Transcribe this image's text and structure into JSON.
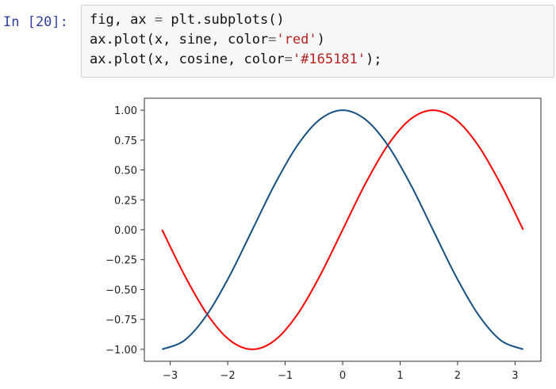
{
  "cell": {
    "prompt": "In [20]:",
    "code_lines": [
      [
        {
          "t": "fig, ax "
        },
        {
          "t": "=",
          "c": "op"
        },
        {
          "t": " plt.subplots()"
        }
      ],
      [
        {
          "t": "ax.plot(x, sine, color"
        },
        {
          "t": "=",
          "c": "op"
        },
        {
          "t": "'red'",
          "c": "str"
        },
        {
          "t": ")"
        }
      ],
      [
        {
          "t": "ax.plot(x, cosine, color"
        },
        {
          "t": "=",
          "c": "op"
        },
        {
          "t": "'#165181'",
          "c": "str"
        },
        {
          "t": ");"
        }
      ]
    ]
  },
  "chart_data": {
    "type": "line",
    "title": "",
    "xlabel": "",
    "ylabel": "",
    "xlim": [
      -3.45,
      3.45
    ],
    "ylim": [
      -1.1,
      1.1
    ],
    "xticks": [
      -3,
      -2,
      -1,
      0,
      1,
      2,
      3
    ],
    "xtick_labels": [
      "−3",
      "−2",
      "−1",
      "0",
      "1",
      "2",
      "3"
    ],
    "yticks": [
      1.0,
      0.75,
      0.5,
      0.25,
      0.0,
      -0.25,
      -0.5,
      -0.75,
      -1.0
    ],
    "ytick_labels": [
      "1.00",
      "0.75",
      "0.50",
      "0.25",
      "0.00",
      "−0.25",
      "−0.50",
      "−0.75",
      "−1.00"
    ],
    "grid": false,
    "series": [
      {
        "color": "#ff0000",
        "x": [
          -3.14159,
          -2.74889,
          -2.35619,
          -1.9635,
          -1.5708,
          -1.1781,
          -0.7854,
          -0.3927,
          0.0,
          0.3927,
          0.7854,
          1.1781,
          1.5708,
          1.9635,
          2.35619,
          2.74889,
          3.14159
        ],
        "y": [
          0.0,
          -0.3827,
          -0.7071,
          -0.9239,
          -1.0,
          -0.9239,
          -0.7071,
          -0.3827,
          0.0,
          0.3827,
          0.7071,
          0.9239,
          1.0,
          0.9239,
          0.7071,
          0.3827,
          0.0
        ]
      },
      {
        "color": "#165181",
        "x": [
          -3.14159,
          -2.74889,
          -2.35619,
          -1.9635,
          -1.5708,
          -1.1781,
          -0.7854,
          -0.3927,
          0.0,
          0.3927,
          0.7854,
          1.1781,
          1.5708,
          1.9635,
          2.35619,
          2.74889,
          3.14159
        ],
        "y": [
          -1.0,
          -0.9239,
          -0.7071,
          -0.3827,
          0.0,
          0.3827,
          0.7071,
          0.9239,
          1.0,
          0.9239,
          0.7071,
          0.3827,
          0.0,
          -0.3827,
          -0.7071,
          -0.9239,
          -1.0
        ]
      }
    ]
  }
}
